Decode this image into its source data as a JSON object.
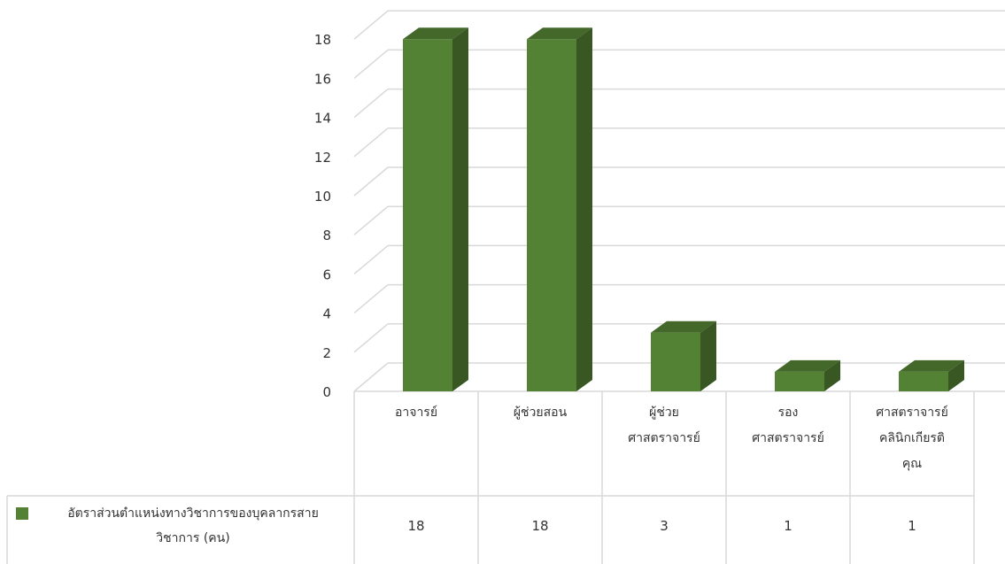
{
  "chart_data": {
    "type": "bar",
    "style": "3d-column-with-data-table",
    "categories": [
      "อาจารย์",
      "ผู้ช่วยสอน",
      "ผู้ช่วย\nศาสตราจารย์",
      "รอง\nศาสตราจารย์",
      "ศาสตราจารย์\nคลินิกเกียรติ\nคุณ"
    ],
    "series": [
      {
        "name": "อัตราส่วนตำแหน่งทางวิชาการของบุคลากรสายวิชาการ (คน)",
        "name_lines": [
          "อัตราส่วนตำแหน่งทางวิชาการของบุคลากรสาย",
          "วิชาการ (คน)"
        ],
        "values": [
          18,
          18,
          3,
          1,
          1
        ],
        "color": "#548235"
      }
    ],
    "yticks": [
      "0",
      "2",
      "4",
      "6",
      "8",
      "10",
      "12",
      "14",
      "16",
      "18"
    ],
    "ylim": [
      0,
      18
    ],
    "grid": true,
    "legend": "data-table-left",
    "colors": {
      "bar_front": "#548235",
      "bar_side": "#385723",
      "bar_top": "#43682a",
      "grid": "#d9d9d9"
    }
  }
}
